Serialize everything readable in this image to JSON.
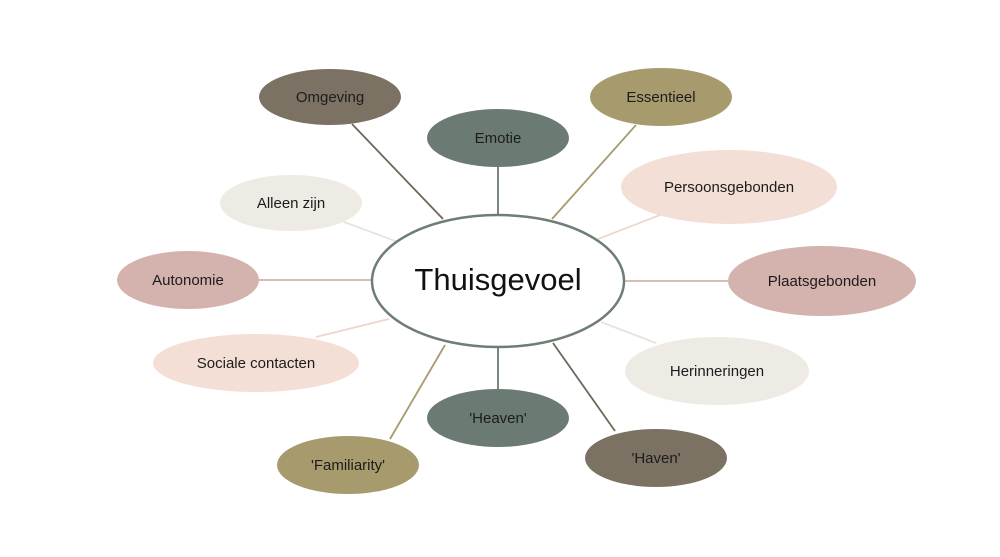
{
  "center": {
    "label": "Thuisgevoel",
    "fill": "#ffffff",
    "stroke": "#6e7d76",
    "text_color": "#111111"
  },
  "nodes": [
    {
      "id": "omgeving",
      "label": "Omgeving",
      "fill": "#7b7263",
      "text_color": "#1c1c1c",
      "line_color": "#6f6859"
    },
    {
      "id": "emotie",
      "label": "Emotie",
      "fill": "#6b7a73",
      "text_color": "#1c1c1c",
      "line_color": "#6b7a73"
    },
    {
      "id": "essentieel",
      "label": "Essentieel",
      "fill": "#a79b6e",
      "text_color": "#1c1c1c",
      "line_color": "#a79b6e"
    },
    {
      "id": "alleen-zijn",
      "label": "Alleen zijn",
      "fill": "#eeebe5",
      "text_color": "#1c1c1c",
      "line_color": "#e8e3db"
    },
    {
      "id": "persoonsgebonden",
      "label": "Persoonsgebonden",
      "fill": "#f3dfd6",
      "text_color": "#1c1c1c",
      "line_color": "#efd6cc"
    },
    {
      "id": "autonomie",
      "label": "Autonomie",
      "fill": "#d4b2ad",
      "text_color": "#1c1c1c",
      "line_color": "#d4b2ad"
    },
    {
      "id": "plaatsgebonden",
      "label": "Plaatsgebonden",
      "fill": "#d4b2ad",
      "text_color": "#1c1c1c",
      "line_color": "#d4b2ad"
    },
    {
      "id": "sociale-contacten",
      "label": "Sociale contacten",
      "fill": "#f3dfd6",
      "text_color": "#1c1c1c",
      "line_color": "#efd6cc"
    },
    {
      "id": "herinneringen",
      "label": "Herinneringen",
      "fill": "#eeebe5",
      "text_color": "#1c1c1c",
      "line_color": "#e8e3db"
    },
    {
      "id": "heaven",
      "label": "'Heaven'",
      "fill": "#6b7a73",
      "text_color": "#1c1c1c",
      "line_color": "#6b7a73"
    },
    {
      "id": "familiarity",
      "label": "'Familiarity'",
      "fill": "#a79b6e",
      "text_color": "#1c1c1c",
      "line_color": "#a79b6e"
    },
    {
      "id": "haven",
      "label": "'Haven'",
      "fill": "#7b7263",
      "text_color": "#1c1c1c",
      "line_color": "#6f6859"
    }
  ]
}
